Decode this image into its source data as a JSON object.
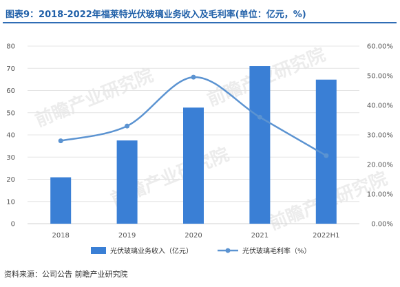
{
  "title": "图表9：2018-2022年福莱特光伏玻璃业务收入及毛利率(单位：亿元，%)",
  "source": "资料来源：公司公告 前瞻产业研究院",
  "watermark": "前瞻产业研究院",
  "colors": {
    "title": "#1f5fa8",
    "bar": "#3a7fd5",
    "line": "#5b93d1",
    "grid": "#e4e4e4",
    "rule": "#2f6db5"
  },
  "chart_data": {
    "type": "bar",
    "categories": [
      "2018",
      "2019",
      "2020",
      "2021",
      "2022H1"
    ],
    "series": [
      {
        "name": "光伏玻璃业务收入（亿元）",
        "type": "bar",
        "axis": "left",
        "values": [
          20.9,
          37.5,
          52.3,
          71.0,
          64.9
        ]
      },
      {
        "name": "光伏玻璃毛利率（%）",
        "type": "line",
        "axis": "right",
        "smooth": true,
        "markers": true,
        "values": [
          0.28,
          0.33,
          0.495,
          0.36,
          0.23
        ]
      }
    ],
    "y_left": {
      "min": 0,
      "max": 80,
      "ticks": [
        "0",
        "10",
        "20",
        "30",
        "40",
        "50",
        "60",
        "70",
        "80"
      ]
    },
    "y_right": {
      "min": 0,
      "max": 0.6,
      "ticks": [
        "0.00%",
        "10.00%",
        "20.00%",
        "30.00%",
        "40.00%",
        "50.00%",
        "60.00%"
      ]
    },
    "grid": true,
    "legend_position": "bottom"
  }
}
